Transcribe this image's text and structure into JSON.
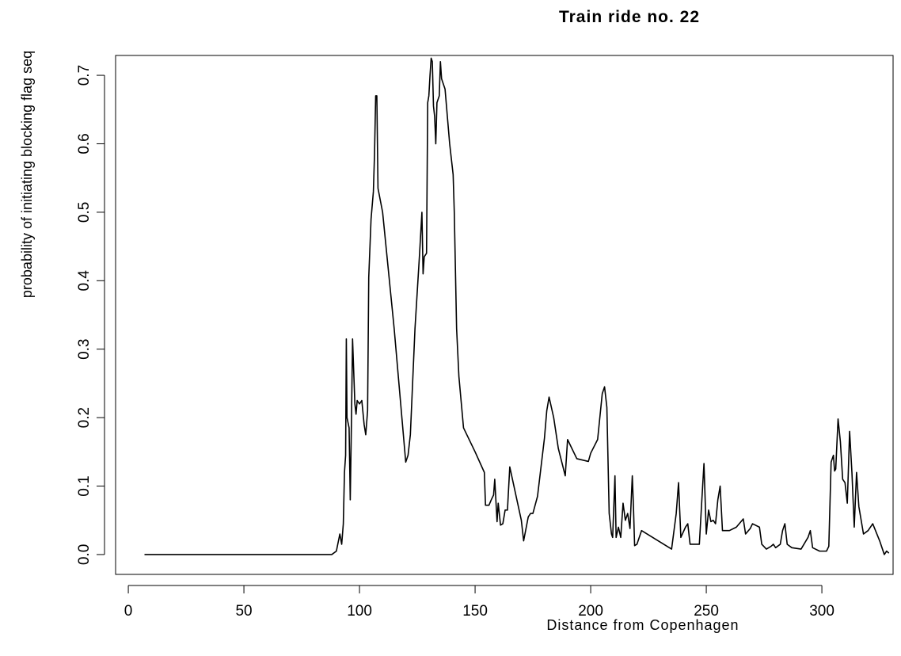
{
  "chart_data": {
    "type": "line",
    "title": "Train ride no. 22",
    "xlabel": "Distance from Copenhagen",
    "ylabel": "probability of initiating blocking flag seq",
    "x": [
      7,
      88,
      90,
      91.5,
      92.3,
      93,
      93.5,
      94,
      94.3,
      94.6,
      95.5,
      96,
      96.5,
      97,
      98,
      98.5,
      99,
      100,
      101,
      102,
      102.7,
      103.5,
      104,
      105,
      106,
      106.5,
      107,
      107.5,
      108,
      110,
      115,
      120,
      121,
      122,
      124,
      126,
      127,
      127.5,
      128,
      129,
      129.5,
      130,
      130.5,
      131,
      131.5,
      132,
      132.5,
      133,
      133.5,
      134.5,
      135,
      135.5,
      136,
      137,
      138,
      139,
      140,
      140.5,
      141,
      142,
      143,
      145,
      150,
      154,
      154.5,
      156,
      157,
      158,
      158.5,
      159.5,
      160,
      161,
      162,
      163,
      164,
      165,
      170,
      171,
      173,
      174,
      175,
      177,
      180,
      181,
      182,
      184,
      186,
      189,
      190,
      194,
      199,
      200,
      203,
      205,
      206,
      207,
      208,
      209,
      209.5,
      210.5,
      211,
      212,
      213,
      214,
      215,
      216,
      217,
      218,
      218.5,
      219,
      220,
      221,
      222,
      235,
      237,
      238,
      239,
      241,
      242,
      243,
      246,
      247,
      248,
      249,
      250,
      251,
      252,
      253,
      254,
      255,
      256,
      257,
      260,
      263,
      266,
      267,
      269,
      270,
      273,
      274,
      276,
      278,
      279,
      280,
      282,
      283,
      284,
      285,
      287,
      291,
      294,
      295,
      296,
      299,
      302,
      303,
      304,
      305,
      305.5,
      306,
      307,
      308,
      309,
      310,
      311,
      312,
      313,
      314,
      315,
      316,
      318,
      320,
      322,
      325,
      327,
      328,
      329
    ],
    "values": [
      0,
      0,
      0.005,
      0.03,
      0.015,
      0.045,
      0.12,
      0.145,
      0.315,
      0.2,
      0.185,
      0.08,
      0.19,
      0.315,
      0.22,
      0.205,
      0.225,
      0.22,
      0.225,
      0.19,
      0.175,
      0.21,
      0.405,
      0.49,
      0.53,
      0.585,
      0.67,
      0.67,
      0.535,
      0.5,
      0.33,
      0.135,
      0.145,
      0.175,
      0.33,
      0.44,
      0.5,
      0.41,
      0.435,
      0.44,
      0.66,
      0.67,
      0.7,
      0.725,
      0.72,
      0.655,
      0.64,
      0.6,
      0.66,
      0.67,
      0.72,
      0.695,
      0.69,
      0.68,
      0.64,
      0.6,
      0.57,
      0.555,
      0.5,
      0.33,
      0.26,
      0.185,
      0.15,
      0.12,
      0.072,
      0.072,
      0.08,
      0.087,
      0.11,
      0.048,
      0.075,
      0.043,
      0.045,
      0.065,
      0.065,
      0.128,
      0.05,
      0.02,
      0.055,
      0.06,
      0.06,
      0.085,
      0.17,
      0.21,
      0.23,
      0.2,
      0.155,
      0.115,
      0.168,
      0.14,
      0.136,
      0.148,
      0.168,
      0.235,
      0.245,
      0.215,
      0.06,
      0.03,
      0.025,
      0.115,
      0.025,
      0.04,
      0.025,
      0.075,
      0.05,
      0.06,
      0.038,
      0.115,
      0.07,
      0.013,
      0.015,
      0.025,
      0.035,
      0.008,
      0.06,
      0.105,
      0.025,
      0.04,
      0.045,
      0.015,
      0.015,
      0.015,
      0.075,
      0.133,
      0.03,
      0.065,
      0.048,
      0.05,
      0.045,
      0.08,
      0.1,
      0.035,
      0.035,
      0.04,
      0.052,
      0.03,
      0.038,
      0.045,
      0.04,
      0.015,
      0.008,
      0.012,
      0.015,
      0.01,
      0.015,
      0.035,
      0.045,
      0.015,
      0.01,
      0.008,
      0.025,
      0.035,
      0.01,
      0.005,
      0.005,
      0.012,
      0.135,
      0.145,
      0.122,
      0.125,
      0.198,
      0.165,
      0.11,
      0.105,
      0.075,
      0.18,
      0.12,
      0.04,
      0.12,
      0.07,
      0.03,
      0.035,
      0.045,
      0.02,
      0,
      0.005,
      0.002
    ],
    "color": "#000000",
    "xlim": [
      -5.5,
      330.8
    ],
    "ylim": [
      -0.029,
      0.729
    ],
    "xticks": [
      0,
      50,
      100,
      150,
      200,
      250,
      300
    ],
    "yticks": [
      {
        "value": 0,
        "label": "0.0"
      },
      0.1,
      0.2,
      0.3,
      0.4,
      0.5,
      0.6,
      0.7
    ]
  }
}
